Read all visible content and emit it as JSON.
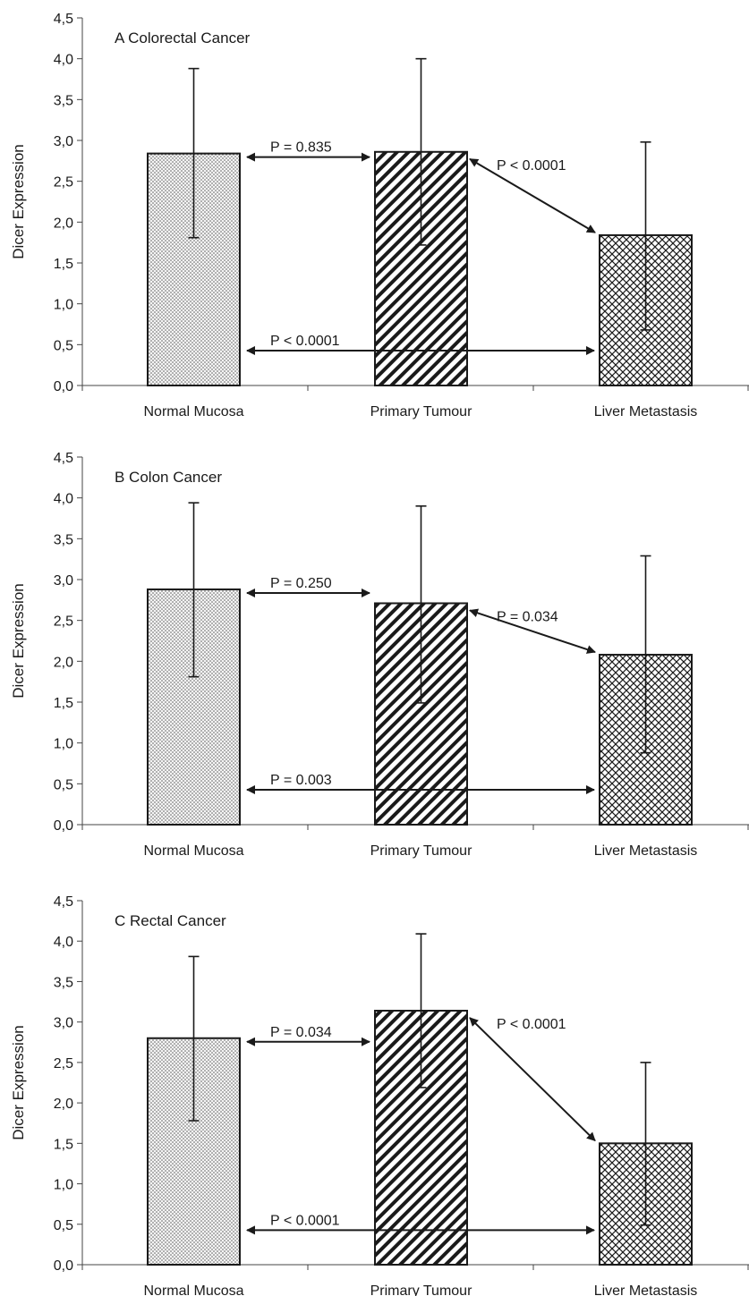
{
  "chart_data": [
    {
      "type": "bar",
      "title": "A   Colorectal Cancer",
      "ylabel": "Dicer Expression",
      "ylim": [
        0,
        4.5
      ],
      "yticks": [
        "0,0",
        "0,5",
        "1,0",
        "1,5",
        "2,0",
        "2,5",
        "3,0",
        "3,5",
        "4,0",
        "4,5"
      ],
      "categories": [
        "Normal Mucosa",
        "Primary Tumour",
        "Liver Metastasis"
      ],
      "values": [
        2.84,
        2.86,
        1.84
      ],
      "error_upper": [
        3.88,
        4.0,
        2.98
      ],
      "error_lower": [
        1.81,
        1.72,
        0.68
      ],
      "comparisons": [
        {
          "label": "P = 0.835",
          "from": 0,
          "to": 1
        },
        {
          "label": "P < 0.0001",
          "from": 1,
          "to": 2
        },
        {
          "label": "P < 0.0001",
          "from": 0,
          "to": 2
        }
      ]
    },
    {
      "type": "bar",
      "title": "B   Colon Cancer",
      "ylabel": "Dicer Expression",
      "ylim": [
        0,
        4.5
      ],
      "yticks": [
        "0,0",
        "0,5",
        "1,0",
        "1,5",
        "2,0",
        "2,5",
        "3,0",
        "3,5",
        "4,0",
        "4,5"
      ],
      "categories": [
        "Normal Mucosa",
        "Primary Tumour",
        "Liver Metastasis"
      ],
      "values": [
        2.88,
        2.71,
        2.08
      ],
      "error_upper": [
        3.94,
        3.9,
        3.29
      ],
      "error_lower": [
        1.81,
        1.49,
        0.88
      ],
      "comparisons": [
        {
          "label": "P = 0.250",
          "from": 0,
          "to": 1
        },
        {
          "label": "P = 0.034",
          "from": 1,
          "to": 2
        },
        {
          "label": "P = 0.003",
          "from": 0,
          "to": 2
        }
      ]
    },
    {
      "type": "bar",
      "title": "C   Rectal Cancer",
      "ylabel": "Dicer Expression",
      "ylim": [
        0,
        4.5
      ],
      "yticks": [
        "0,0",
        "0,5",
        "1,0",
        "1,5",
        "2,0",
        "2,5",
        "3,0",
        "3,5",
        "4,0",
        "4,5"
      ],
      "categories": [
        "Normal Mucosa",
        "Primary Tumour",
        "Liver Metastasis"
      ],
      "values": [
        2.8,
        3.14,
        1.5
      ],
      "error_upper": [
        3.81,
        4.09,
        2.5
      ],
      "error_lower": [
        1.78,
        2.19,
        0.49
      ],
      "comparisons": [
        {
          "label": "P = 0.034",
          "from": 0,
          "to": 1
        },
        {
          "label": "P < 0.0001",
          "from": 1,
          "to": 2
        },
        {
          "label": "P < 0.0001",
          "from": 0,
          "to": 2
        }
      ]
    }
  ],
  "colors": {
    "ink": "#1a1a1a",
    "axis": "#444444",
    "fill": "#ffffff"
  },
  "bar_patterns": [
    "dots",
    "diagonal-hatch",
    "crosshatch"
  ]
}
